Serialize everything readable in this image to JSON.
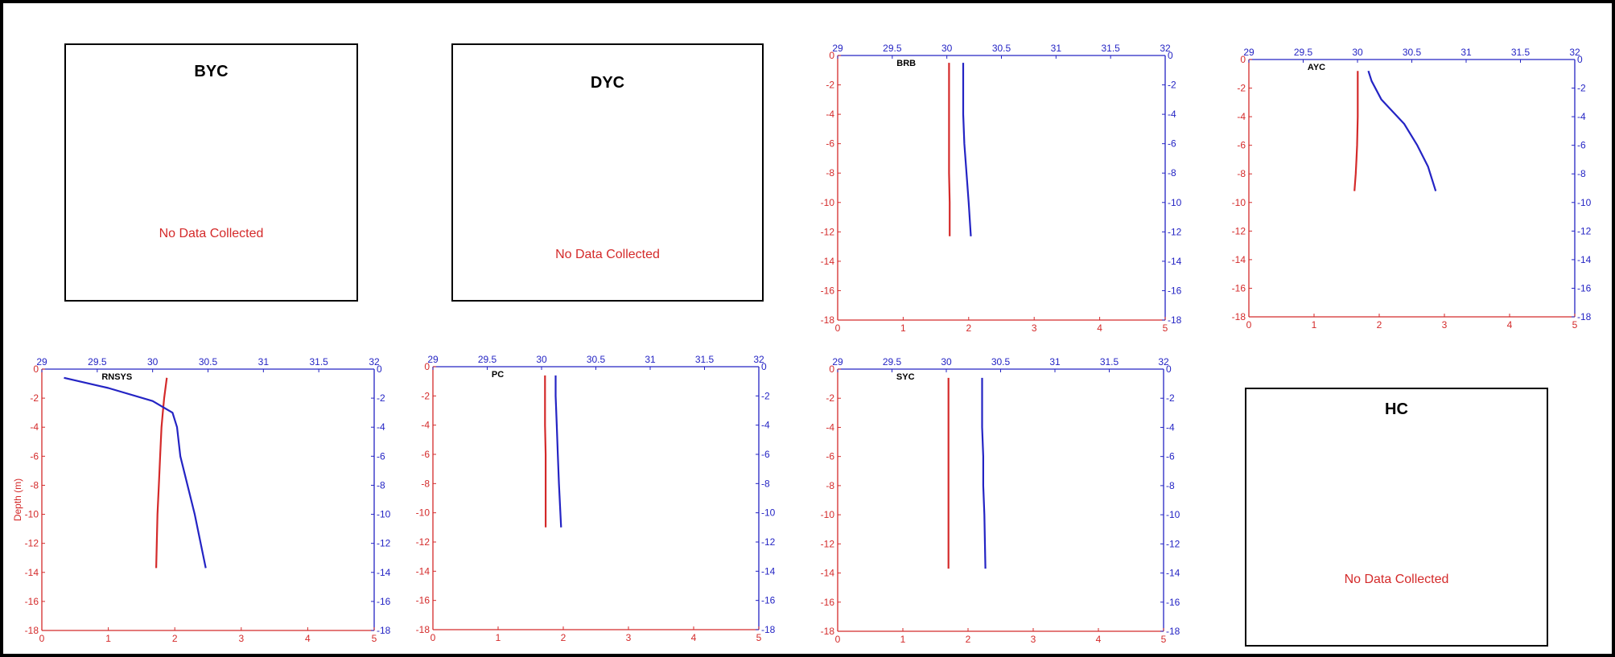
{
  "colors": {
    "temperature": "#d42a2a",
    "salinity": "#2424c4"
  },
  "no_data_panels": [
    {
      "title": "BYC",
      "message": "No Data Collected"
    },
    {
      "title": "DYC",
      "message": "No Data Collected"
    },
    {
      "title": "HC",
      "message": "No Data Collected"
    }
  ],
  "chart_data": [
    {
      "type": "line",
      "station": "BRB",
      "bottom_axis": {
        "range": [
          0,
          5
        ],
        "ticks": [
          0,
          1,
          2,
          3,
          4,
          5
        ],
        "color": "red"
      },
      "top_axis": {
        "range": [
          29,
          32
        ],
        "ticks": [
          29,
          29.5,
          30,
          30.5,
          31,
          31.5,
          32
        ],
        "color": "blue"
      },
      "depth_axis": {
        "range": [
          -18,
          0
        ],
        "ticks": [
          0,
          -2,
          -4,
          -6,
          -8,
          -10,
          -12,
          -14,
          -16,
          -18
        ]
      },
      "series": [
        {
          "axis": "bottom",
          "color": "red",
          "x": [
            1.7,
            1.7,
            1.7,
            1.7,
            1.7,
            1.71,
            1.71
          ],
          "depth": [
            -0.5,
            -2,
            -4,
            -6,
            -8,
            -10,
            -12.3
          ]
        },
        {
          "axis": "top",
          "color": "blue",
          "x": [
            30.15,
            30.15,
            30.15,
            30.16,
            30.18,
            30.2,
            30.22
          ],
          "depth": [
            -0.5,
            -2,
            -4,
            -6,
            -8,
            -10,
            -12.3
          ]
        }
      ]
    },
    {
      "type": "line",
      "station": "AYC",
      "bottom_axis": {
        "range": [
          0,
          5
        ],
        "ticks": [
          0,
          1,
          2,
          3,
          4,
          5
        ],
        "color": "red"
      },
      "top_axis": {
        "range": [
          29,
          32
        ],
        "ticks": [
          29,
          29.5,
          30,
          30.5,
          31,
          31.5,
          32
        ],
        "color": "blue"
      },
      "depth_axis": {
        "range": [
          -18,
          0
        ],
        "ticks": [
          0,
          -2,
          -4,
          -6,
          -8,
          -10,
          -12,
          -14,
          -16,
          -18
        ]
      },
      "series": [
        {
          "axis": "bottom",
          "color": "red",
          "x": [
            1.67,
            1.67,
            1.67,
            1.66,
            1.65,
            1.64,
            1.62
          ],
          "depth": [
            -0.8,
            -2,
            -4,
            -6,
            -7,
            -8,
            -9.2
          ]
        },
        {
          "axis": "top",
          "color": "blue",
          "x": [
            30.1,
            30.13,
            30.22,
            30.43,
            30.55,
            30.65,
            30.72
          ],
          "depth": [
            -0.8,
            -1.5,
            -2.8,
            -4.5,
            -6,
            -7.5,
            -9.2
          ]
        }
      ]
    },
    {
      "type": "line",
      "station": "RNSYS",
      "ylabel": "Depth (m)",
      "bottom_axis": {
        "range": [
          0,
          5
        ],
        "ticks": [
          0,
          1,
          2,
          3,
          4,
          5
        ],
        "color": "red"
      },
      "top_axis": {
        "range": [
          29,
          32
        ],
        "ticks": [
          29,
          29.5,
          30,
          30.5,
          31,
          31.5,
          32
        ],
        "color": "blue"
      },
      "depth_axis": {
        "range": [
          -18,
          0
        ],
        "ticks": [
          0,
          -2,
          -4,
          -6,
          -8,
          -10,
          -12,
          -14,
          -16,
          -18
        ]
      },
      "series": [
        {
          "axis": "bottom",
          "color": "red",
          "x": [
            1.88,
            1.84,
            1.82,
            1.8,
            1.78,
            1.76,
            1.74,
            1.72
          ],
          "depth": [
            -0.6,
            -2,
            -3,
            -4,
            -6,
            -8,
            -10,
            -13.7
          ]
        },
        {
          "axis": "top",
          "color": "blue",
          "x": [
            29.2,
            29.6,
            30.0,
            30.18,
            30.22,
            30.25,
            30.38,
            30.48
          ],
          "depth": [
            -0.6,
            -1.3,
            -2.2,
            -3,
            -4,
            -6,
            -10,
            -13.7
          ]
        }
      ]
    },
    {
      "type": "line",
      "station": "PC",
      "bottom_axis": {
        "range": [
          0,
          5
        ],
        "ticks": [
          0,
          1,
          2,
          3,
          4,
          5
        ],
        "color": "red"
      },
      "top_axis": {
        "range": [
          29,
          32
        ],
        "ticks": [
          29,
          29.5,
          30,
          30.5,
          31,
          31.5,
          32
        ],
        "color": "blue"
      },
      "depth_axis": {
        "range": [
          -18,
          0
        ],
        "ticks": [
          0,
          -2,
          -4,
          -6,
          -8,
          -10,
          -12,
          -14,
          -16,
          -18
        ]
      },
      "series": [
        {
          "axis": "bottom",
          "color": "red",
          "x": [
            1.72,
            1.72,
            1.72,
            1.73,
            1.73,
            1.73
          ],
          "depth": [
            -0.6,
            -2,
            -4,
            -6,
            -8,
            -11
          ]
        },
        {
          "axis": "top",
          "color": "blue",
          "x": [
            30.13,
            30.13,
            30.14,
            30.15,
            30.16,
            30.18
          ],
          "depth": [
            -0.6,
            -2,
            -4,
            -6,
            -8,
            -11
          ]
        }
      ]
    },
    {
      "type": "line",
      "station": "SYC",
      "bottom_axis": {
        "range": [
          0,
          5
        ],
        "ticks": [
          0,
          1,
          2,
          3,
          4,
          5
        ],
        "color": "red"
      },
      "top_axis": {
        "range": [
          29,
          32
        ],
        "ticks": [
          29,
          29.5,
          30,
          30.5,
          31,
          31.5,
          32
        ],
        "color": "blue"
      },
      "depth_axis": {
        "range": [
          -18,
          0
        ],
        "ticks": [
          0,
          -2,
          -4,
          -6,
          -8,
          -10,
          -12,
          -14,
          -16,
          -18
        ]
      },
      "series": [
        {
          "axis": "bottom",
          "color": "red",
          "x": [
            1.7,
            1.7,
            1.7,
            1.7,
            1.7,
            1.7,
            1.7
          ],
          "depth": [
            -0.6,
            -2,
            -4,
            -6,
            -8,
            -10,
            -13.7
          ]
        },
        {
          "axis": "top",
          "color": "blue",
          "x": [
            30.33,
            30.33,
            30.33,
            30.34,
            30.34,
            30.35,
            30.36
          ],
          "depth": [
            -0.6,
            -2,
            -4,
            -6,
            -8,
            -10,
            -13.7
          ]
        }
      ]
    }
  ]
}
